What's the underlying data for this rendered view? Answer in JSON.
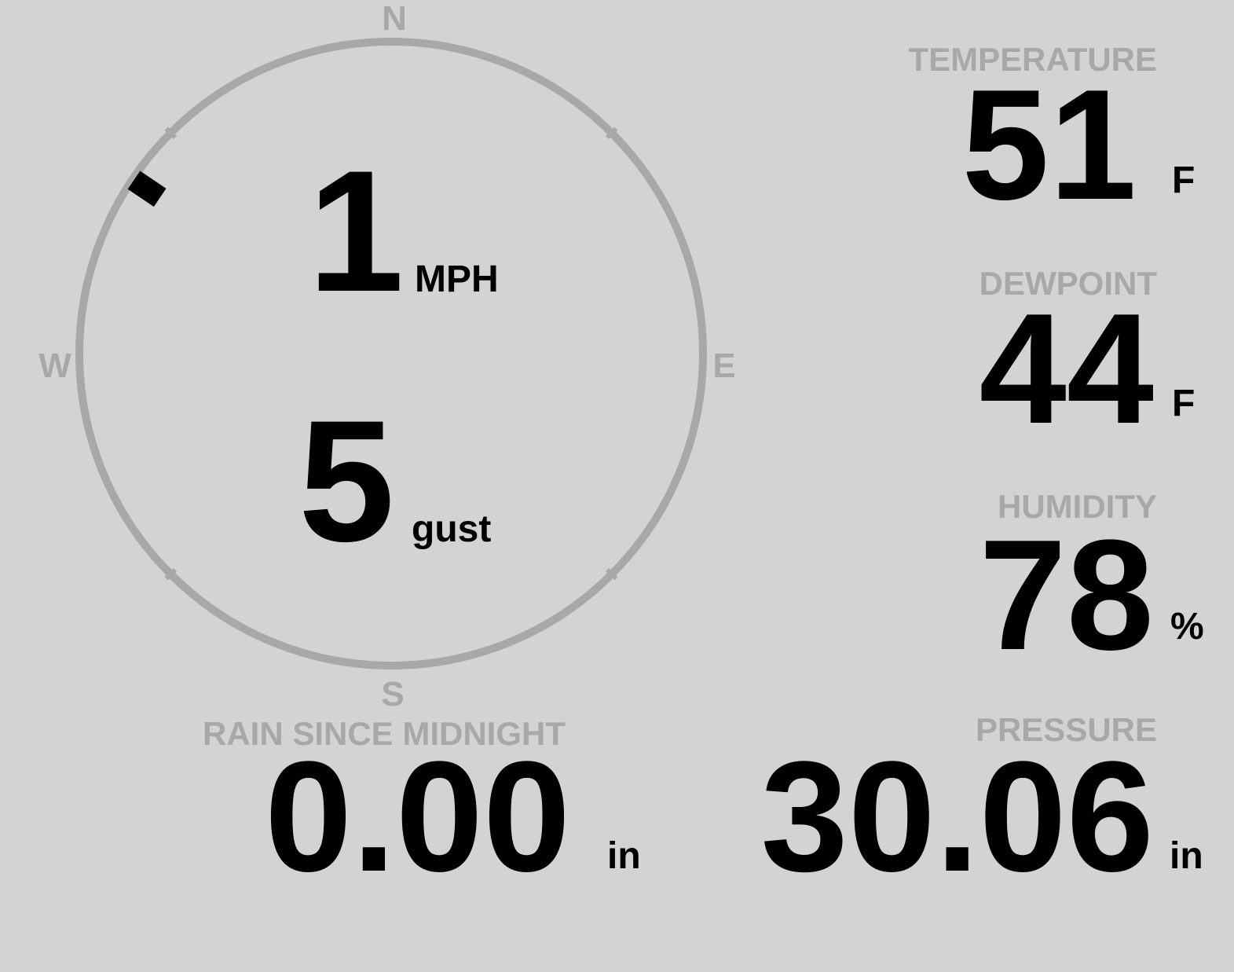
{
  "wind": {
    "speed": "1",
    "speed_unit": "MPH",
    "gust": "5",
    "gust_unit": "gust",
    "direction_deg": 304,
    "cardinals": {
      "n": "N",
      "e": "E",
      "s": "S",
      "w": "W"
    }
  },
  "temperature": {
    "label": "TEMPERATURE",
    "value": "51",
    "unit": "F"
  },
  "dewpoint": {
    "label": "DEWPOINT",
    "value": "44",
    "unit": "F"
  },
  "humidity": {
    "label": "HUMIDITY",
    "value": "78",
    "unit": "%"
  },
  "rain": {
    "label": "RAIN SINCE MIDNIGHT",
    "value": "0.00",
    "unit": "in"
  },
  "pressure": {
    "label": "PRESSURE",
    "value": "30.06",
    "unit": "in"
  },
  "colors": {
    "background": "#d3d3d3",
    "muted": "#a8a8a8",
    "text": "#000000"
  }
}
